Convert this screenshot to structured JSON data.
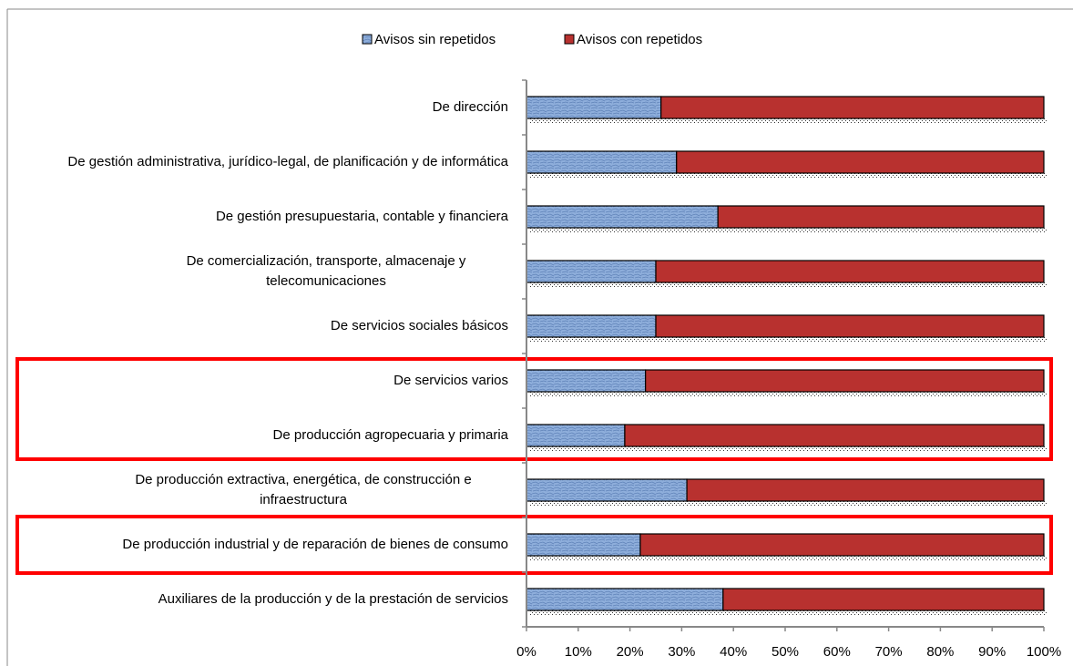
{
  "chart_data": {
    "type": "bar",
    "orientation": "horizontal",
    "stacked": true,
    "categories": [
      "De dirección",
      "De gestión administrativa,  jurídico-legal, de planificación y de informática",
      "De gestión presupuestaria, contable y financiera",
      "De comercialización, transporte, almacenaje y telecomunicaciones",
      "De servicios sociales básicos",
      "De servicios varios",
      "De producción agropecuaria y primaria",
      "De producción extractiva, energética, de construcción e infraestructura",
      "De producción industrial y de reparación de bienes de consumo",
      "Auxiliares de la producción y de la prestación de servicios"
    ],
    "series": [
      {
        "name": "Avisos sin repetidos",
        "color": "#8eaedb",
        "values": [
          26,
          29,
          37,
          25,
          25,
          23,
          19,
          31,
          22,
          38
        ]
      },
      {
        "name": "Avisos con repetidos",
        "color": "#b8312f",
        "values": [
          74,
          71,
          63,
          75,
          75,
          77,
          81,
          69,
          78,
          62
        ]
      }
    ],
    "xlim": [
      0,
      100
    ],
    "xticks": [
      {
        "value": 0,
        "label": "0%"
      },
      {
        "value": 10,
        "label": "10%"
      },
      {
        "value": 20,
        "label": "20%"
      },
      {
        "value": 30,
        "label": "30%"
      },
      {
        "value": 40,
        "label": "40%"
      },
      {
        "value": 50,
        "label": "50%"
      },
      {
        "value": 60,
        "label": "60%"
      },
      {
        "value": 70,
        "label": "70%"
      },
      {
        "value": 80,
        "label": "80%"
      },
      {
        "value": 90,
        "label": "90%"
      },
      {
        "value": 100,
        "label": "100%"
      }
    ],
    "legend": "top"
  }
}
